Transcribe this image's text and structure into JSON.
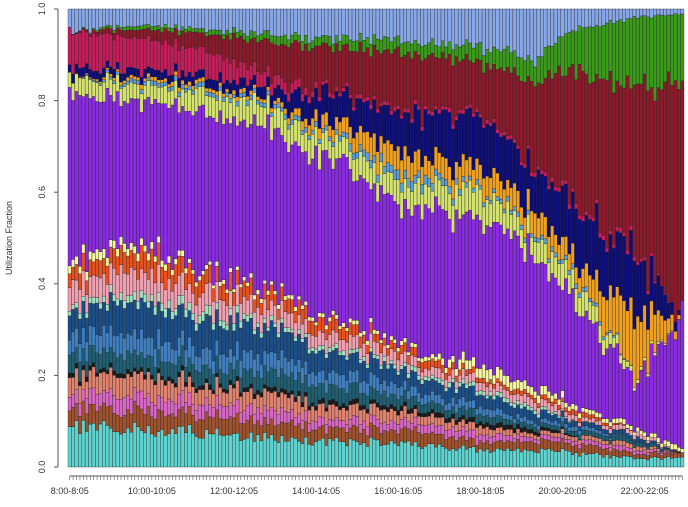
{
  "chart_data": {
    "type": "bar",
    "stacked": true,
    "title": "",
    "xlabel": "",
    "ylabel": "Utilization Fraction",
    "ylim": [
      0,
      1
    ],
    "yticks": [
      "0.0",
      "0.2",
      "0.4",
      "0.6",
      "0.8",
      "1.0"
    ],
    "x_tick_labels": [
      "8:00-8:05",
      "10:00-10:05",
      "12:00-12:05",
      "14:00-14:05",
      "16:00-16:05",
      "18:00-18:05",
      "20:00-20:05",
      "22:00-22:05"
    ],
    "x_tick_every": 24,
    "interval_minutes": 5,
    "start_time": "8:00",
    "n_bars": 180,
    "series": [
      {
        "name": "cyan",
        "color": "#5fd3cf",
        "knots": [
          [
            0,
            0.09
          ],
          [
            20,
            0.1
          ],
          [
            40,
            0.08
          ],
          [
            60,
            0.07
          ],
          [
            75,
            0.06
          ],
          [
            90,
            0.06
          ],
          [
            105,
            0.05
          ],
          [
            120,
            0.04
          ],
          [
            135,
            0.04
          ],
          [
            150,
            0.03
          ],
          [
            165,
            0.02
          ],
          [
            179,
            0.02
          ]
        ]
      },
      {
        "name": "brown",
        "color": "#a0522d",
        "knots": [
          [
            0,
            0.04
          ],
          [
            20,
            0.05
          ],
          [
            40,
            0.04
          ],
          [
            60,
            0.04
          ],
          [
            75,
            0.03
          ],
          [
            90,
            0.03
          ],
          [
            105,
            0.03
          ],
          [
            120,
            0.02
          ],
          [
            135,
            0.02
          ],
          [
            150,
            0.02
          ],
          [
            165,
            0.01
          ],
          [
            179,
            0.01
          ]
        ]
      },
      {
        "name": "pink",
        "color": "#d966c4",
        "knots": [
          [
            0,
            0.03
          ],
          [
            20,
            0.04
          ],
          [
            40,
            0.03
          ],
          [
            60,
            0.03
          ],
          [
            75,
            0.02
          ],
          [
            90,
            0.02
          ],
          [
            105,
            0.02
          ],
          [
            120,
            0.02
          ],
          [
            135,
            0.01
          ],
          [
            150,
            0.01
          ],
          [
            165,
            0.01
          ],
          [
            179,
            0
          ]
        ]
      },
      {
        "name": "salmon",
        "color": "#e0826e",
        "knots": [
          [
            0,
            0.04
          ],
          [
            20,
            0.05
          ],
          [
            40,
            0.04
          ],
          [
            60,
            0.04
          ],
          [
            75,
            0.03
          ],
          [
            90,
            0.03
          ],
          [
            105,
            0.02
          ],
          [
            120,
            0.02
          ],
          [
            135,
            0.01
          ],
          [
            150,
            0.01
          ],
          [
            165,
            0.01
          ],
          [
            179,
            0
          ]
        ]
      },
      {
        "name": "black",
        "color": "#1a1a1a",
        "knots": [
          [
            0,
            0.01
          ],
          [
            20,
            0.01
          ],
          [
            40,
            0.01
          ],
          [
            60,
            0.01
          ],
          [
            75,
            0.01
          ],
          [
            90,
            0.01
          ],
          [
            105,
            0.01
          ],
          [
            120,
            0.01
          ],
          [
            135,
            0.01
          ],
          [
            150,
            0
          ],
          [
            165,
            0
          ],
          [
            179,
            0
          ]
        ]
      },
      {
        "name": "teal-dark",
        "color": "#1f5f73",
        "knots": [
          [
            0,
            0.04
          ],
          [
            20,
            0.04
          ],
          [
            40,
            0.04
          ],
          [
            60,
            0.04
          ],
          [
            75,
            0.04
          ],
          [
            90,
            0.03
          ],
          [
            105,
            0.02
          ],
          [
            120,
            0.02
          ],
          [
            135,
            0.01
          ],
          [
            150,
            0.01
          ],
          [
            165,
            0.01
          ],
          [
            179,
            0
          ]
        ]
      },
      {
        "name": "steel-blue",
        "color": "#3f7fbf",
        "knots": [
          [
            0,
            0.04
          ],
          [
            20,
            0.05
          ],
          [
            40,
            0.04
          ],
          [
            60,
            0.04
          ],
          [
            75,
            0.03
          ],
          [
            90,
            0.03
          ],
          [
            105,
            0.02
          ],
          [
            120,
            0.02
          ],
          [
            135,
            0.01
          ],
          [
            150,
            0.01
          ],
          [
            165,
            0
          ],
          [
            179,
            0
          ]
        ]
      },
      {
        "name": "navy-blue",
        "color": "#1b4f8a",
        "knots": [
          [
            0,
            0.05
          ],
          [
            20,
            0.08
          ],
          [
            40,
            0.07
          ],
          [
            60,
            0.06
          ],
          [
            75,
            0.05
          ],
          [
            90,
            0.04
          ],
          [
            105,
            0.03
          ],
          [
            120,
            0.03
          ],
          [
            135,
            0.02
          ],
          [
            150,
            0.01
          ],
          [
            165,
            0.01
          ],
          [
            179,
            0
          ]
        ]
      },
      {
        "name": "mint",
        "color": "#9fe0c0",
        "knots": [
          [
            0,
            0.01
          ],
          [
            20,
            0.02
          ],
          [
            40,
            0.02
          ],
          [
            60,
            0.01
          ],
          [
            75,
            0.01
          ],
          [
            90,
            0.01
          ],
          [
            105,
            0.01
          ],
          [
            120,
            0.01
          ],
          [
            135,
            0.01
          ],
          [
            150,
            0
          ],
          [
            165,
            0
          ],
          [
            179,
            0
          ]
        ]
      },
      {
        "name": "light-pink",
        "color": "#f0a0b0",
        "knots": [
          [
            0,
            0.05
          ],
          [
            20,
            0.06
          ],
          [
            40,
            0.05
          ],
          [
            60,
            0.04
          ],
          [
            75,
            0.03
          ],
          [
            90,
            0.03
          ],
          [
            105,
            0.02
          ],
          [
            120,
            0.02
          ],
          [
            135,
            0.02
          ],
          [
            150,
            0.01
          ],
          [
            165,
            0.01
          ],
          [
            179,
            0
          ]
        ]
      },
      {
        "name": "orange-red",
        "color": "#e8501e",
        "knots": [
          [
            0,
            0.03
          ],
          [
            20,
            0.05
          ],
          [
            40,
            0.04
          ],
          [
            60,
            0.03
          ],
          [
            75,
            0.03
          ],
          [
            90,
            0.02
          ],
          [
            105,
            0.02
          ],
          [
            120,
            0.01
          ],
          [
            135,
            0.01
          ],
          [
            150,
            0.01
          ],
          [
            165,
            0
          ],
          [
            179,
            0
          ]
        ]
      },
      {
        "name": "pale-yellow",
        "color": "#f5f5a0",
        "knots": [
          [
            0,
            0.02
          ],
          [
            20,
            0.02
          ],
          [
            40,
            0.01
          ],
          [
            60,
            0.01
          ],
          [
            75,
            0.01
          ],
          [
            90,
            0.01
          ],
          [
            105,
            0.01
          ],
          [
            120,
            0.03
          ],
          [
            135,
            0.02
          ],
          [
            150,
            0.01
          ],
          [
            165,
            0.01
          ],
          [
            179,
            0.01
          ]
        ]
      },
      {
        "name": "purple",
        "color": "#8a2be2",
        "knots": [
          [
            0,
            0.38
          ],
          [
            20,
            0.36
          ],
          [
            40,
            0.37
          ],
          [
            60,
            0.38
          ],
          [
            75,
            0.36
          ],
          [
            90,
            0.36
          ],
          [
            105,
            0.35
          ],
          [
            120,
            0.34
          ],
          [
            135,
            0.3
          ],
          [
            150,
            0.22
          ],
          [
            165,
            0.1
          ],
          [
            179,
            0.3
          ]
        ]
      },
      {
        "name": "yellow-green",
        "color": "#d4e26e",
        "knots": [
          [
            0,
            0.04
          ],
          [
            20,
            0.04
          ],
          [
            40,
            0.05
          ],
          [
            60,
            0.05
          ],
          [
            75,
            0.05
          ],
          [
            90,
            0.05
          ],
          [
            105,
            0.06
          ],
          [
            120,
            0.07
          ],
          [
            135,
            0.05
          ],
          [
            150,
            0.05
          ],
          [
            165,
            0.01
          ],
          [
            179,
            0
          ]
        ]
      },
      {
        "name": "light-blue",
        "color": "#5aa0d8",
        "knots": [
          [
            0,
            0
          ],
          [
            20,
            0.01
          ],
          [
            40,
            0.01
          ],
          [
            60,
            0.01
          ],
          [
            75,
            0.01
          ],
          [
            90,
            0.02
          ],
          [
            105,
            0.02
          ],
          [
            120,
            0.01
          ],
          [
            135,
            0.01
          ],
          [
            150,
            0.01
          ],
          [
            165,
            0
          ],
          [
            179,
            0
          ]
        ]
      },
      {
        "name": "orange",
        "color": "#f0a020",
        "knots": [
          [
            0,
            0
          ],
          [
            20,
            0.01
          ],
          [
            40,
            0.01
          ],
          [
            60,
            0.01
          ],
          [
            75,
            0.03
          ],
          [
            90,
            0.05
          ],
          [
            105,
            0.05
          ],
          [
            120,
            0.05
          ],
          [
            135,
            0.05
          ],
          [
            150,
            0.04
          ],
          [
            165,
            0.14
          ],
          [
            179,
            0
          ]
        ]
      },
      {
        "name": "dark-navy",
        "color": "#0d0d7a",
        "knots": [
          [
            0,
            0.02
          ],
          [
            20,
            0.02
          ],
          [
            40,
            0.02
          ],
          [
            60,
            0.03
          ],
          [
            75,
            0.06
          ],
          [
            90,
            0.08
          ],
          [
            105,
            0.1
          ],
          [
            120,
            0.12
          ],
          [
            135,
            0.1
          ],
          [
            150,
            0.12
          ],
          [
            165,
            0.14
          ],
          [
            179,
            0
          ]
        ]
      },
      {
        "name": "crimson",
        "color": "#c41e5a",
        "knots": [
          [
            0,
            0.08
          ],
          [
            20,
            0.08
          ],
          [
            40,
            0.06
          ],
          [
            60,
            0.03
          ],
          [
            75,
            0.01
          ],
          [
            90,
            0.01
          ],
          [
            105,
            0.01
          ],
          [
            120,
            0.01
          ],
          [
            135,
            0.01
          ],
          [
            150,
            0.01
          ],
          [
            165,
            0.01
          ],
          [
            179,
            0
          ]
        ]
      },
      {
        "name": "dark-red",
        "color": "#8b1a2a",
        "knots": [
          [
            0,
            0
          ],
          [
            20,
            0.02
          ],
          [
            40,
            0.04
          ],
          [
            60,
            0.08
          ],
          [
            75,
            0.1
          ],
          [
            90,
            0.12
          ],
          [
            105,
            0.14
          ],
          [
            120,
            0.12
          ],
          [
            135,
            0.2
          ],
          [
            150,
            0.32
          ],
          [
            165,
            0.36
          ],
          [
            179,
            0.5
          ]
        ]
      },
      {
        "name": "green",
        "color": "#3a9a1a",
        "knots": [
          [
            0,
            0
          ],
          [
            20,
            0.01
          ],
          [
            40,
            0.01
          ],
          [
            60,
            0.02
          ],
          [
            75,
            0.02
          ],
          [
            90,
            0.03
          ],
          [
            105,
            0.03
          ],
          [
            120,
            0.04
          ],
          [
            135,
            0.05
          ],
          [
            150,
            0.1
          ],
          [
            165,
            0.16
          ],
          [
            179,
            0.15
          ]
        ]
      },
      {
        "name": "periwinkle",
        "color": "#87a7e6",
        "knots": [
          [
            0,
            0.05
          ],
          [
            20,
            0.04
          ],
          [
            40,
            0.05
          ],
          [
            60,
            0.06
          ],
          [
            75,
            0.07
          ],
          [
            90,
            0.07
          ],
          [
            105,
            0.08
          ],
          [
            120,
            0.1
          ],
          [
            135,
            0.12
          ],
          [
            150,
            0.04
          ],
          [
            165,
            0.02
          ],
          [
            179,
            0.01
          ]
        ]
      }
    ]
  }
}
